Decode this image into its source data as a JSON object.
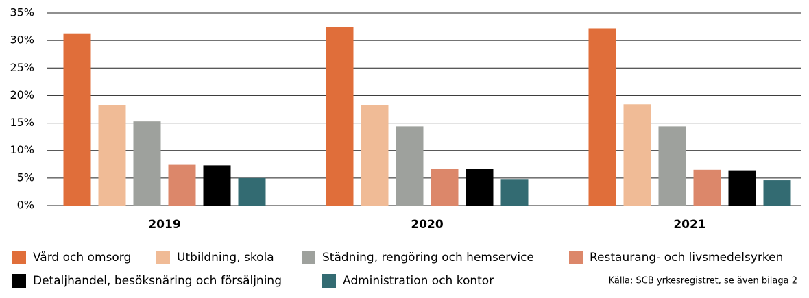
{
  "chart_data": {
    "type": "bar",
    "categories": [
      "2019",
      "2020",
      "2021"
    ],
    "series": [
      {
        "name": "Vård och omsorg",
        "color": "#e06e3a",
        "values": [
          31.3,
          32.4,
          32.2
        ]
      },
      {
        "name": "Utbildning, skola",
        "color": "#f0bb96",
        "values": [
          18.2,
          18.2,
          18.4
        ]
      },
      {
        "name": "Städning, rengöring och hemservice",
        "color": "#9ea19d",
        "values": [
          15.3,
          14.4,
          14.4
        ]
      },
      {
        "name": "Restaurang- och livsmedelsyrken",
        "color": "#dc876a",
        "values": [
          7.4,
          6.7,
          6.5
        ]
      },
      {
        "name": "Detaljhandel, besöksnäring och försäljning",
        "color": "#000000",
        "values": [
          7.3,
          6.7,
          6.4
        ]
      },
      {
        "name": "Administration och kontor",
        "color": "#336b72",
        "values": [
          5.0,
          4.7,
          4.6
        ]
      }
    ],
    "ylim": [
      0,
      35
    ],
    "yticks": [
      {
        "value": 0,
        "label": "0%"
      },
      {
        "value": 5,
        "label": "5%"
      },
      {
        "value": 10,
        "label": "10%"
      },
      {
        "value": 15,
        "label": "15%"
      },
      {
        "value": 20,
        "label": "20%"
      },
      {
        "value": 25,
        "label": "25%"
      },
      {
        "value": 30,
        "label": "30%"
      },
      {
        "value": 35,
        "label": "35%"
      }
    ],
    "grid": true,
    "legend": "bottom",
    "source": "Källa: SCB yrkesregistret, se även bilaga 2"
  }
}
